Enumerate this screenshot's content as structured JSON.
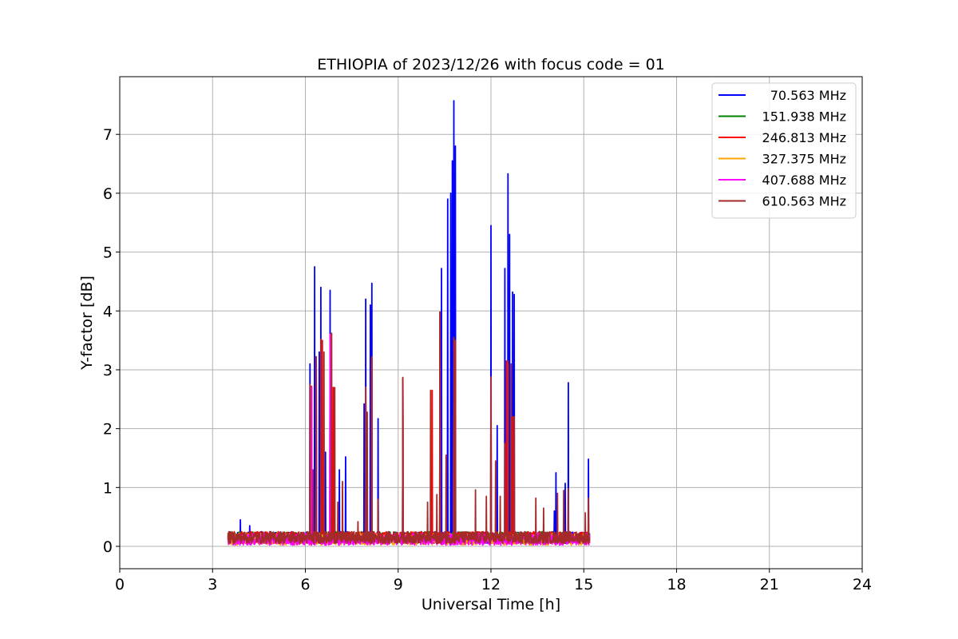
{
  "chart_data": {
    "type": "line",
    "title": "ETHIOPIA of 2023/12/26 with focus code = 01",
    "xlabel": "Universal Time [h]",
    "ylabel": "Y-factor [dB]",
    "xlim": [
      0,
      24
    ],
    "ylim": [
      -0.38,
      7.98
    ],
    "xticks": [
      0,
      3,
      6,
      9,
      12,
      15,
      18,
      21,
      24
    ],
    "yticks": [
      0,
      1,
      2,
      3,
      4,
      5,
      6,
      7
    ],
    "grid": true,
    "legend_position": "top-right",
    "baseline": {
      "x_range": [
        3.5,
        15.2
      ],
      "low": 0.05,
      "high": 0.25
    },
    "series": [
      {
        "name": "70.563 MHz",
        "color": "#0000ff",
        "spikes": [
          [
            3.9,
            0.45
          ],
          [
            4.2,
            0.35
          ],
          [
            6.15,
            3.1
          ],
          [
            6.3,
            4.75
          ],
          [
            6.45,
            3.3
          ],
          [
            6.5,
            4.4
          ],
          [
            6.65,
            1.6
          ],
          [
            6.8,
            4.35
          ],
          [
            6.9,
            2.7
          ],
          [
            7.1,
            1.3
          ],
          [
            7.3,
            1.52
          ],
          [
            7.9,
            2.42
          ],
          [
            7.95,
            4.2
          ],
          [
            8.1,
            4.1
          ],
          [
            8.15,
            4.47
          ],
          [
            8.35,
            2.17
          ],
          [
            9.15,
            2.85
          ],
          [
            10.4,
            4.72
          ],
          [
            10.6,
            5.9
          ],
          [
            10.7,
            6.0
          ],
          [
            10.75,
            6.55
          ],
          [
            10.8,
            7.57
          ],
          [
            10.85,
            6.8
          ],
          [
            12.0,
            5.45
          ],
          [
            12.2,
            2.05
          ],
          [
            12.45,
            4.72
          ],
          [
            12.55,
            6.33
          ],
          [
            12.6,
            5.3
          ],
          [
            12.7,
            4.32
          ],
          [
            12.75,
            4.28
          ],
          [
            14.05,
            0.6
          ],
          [
            14.1,
            1.25
          ],
          [
            14.4,
            1.07
          ],
          [
            14.5,
            2.78
          ],
          [
            15.15,
            1.48
          ]
        ]
      },
      {
        "name": "151.938 MHz",
        "color": "#008000",
        "spikes": [
          [
            6.2,
            2.7
          ],
          [
            6.35,
            3.2
          ],
          [
            6.8,
            3.6
          ],
          [
            7.95,
            2.7
          ],
          [
            8.15,
            3.2
          ],
          [
            9.15,
            2.85
          ],
          [
            10.35,
            3.95
          ],
          [
            10.8,
            3.5
          ],
          [
            12.0,
            2.85
          ],
          [
            12.55,
            3.1
          ],
          [
            12.7,
            2.2
          ]
        ]
      },
      {
        "name": "246.813 MHz",
        "color": "#ff0000",
        "spikes": [
          [
            6.2,
            2.72
          ],
          [
            6.35,
            3.22
          ],
          [
            6.55,
            3.5
          ],
          [
            6.8,
            3.6
          ],
          [
            6.9,
            2.7
          ],
          [
            7.95,
            2.7
          ],
          [
            8.15,
            3.2
          ],
          [
            9.15,
            2.86
          ],
          [
            10.1,
            2.65
          ],
          [
            10.35,
            3.98
          ],
          [
            10.8,
            3.52
          ],
          [
            12.0,
            2.86
          ],
          [
            12.5,
            3.15
          ],
          [
            12.7,
            2.2
          ]
        ]
      },
      {
        "name": "327.375 MHz",
        "color": "#ffa500",
        "spikes": [
          [
            6.2,
            2.7
          ],
          [
            6.35,
            3.2
          ],
          [
            6.8,
            3.6
          ],
          [
            7.95,
            2.7
          ],
          [
            8.15,
            3.2
          ],
          [
            9.15,
            2.85
          ],
          [
            10.35,
            3.95
          ],
          [
            10.8,
            3.5
          ],
          [
            12.0,
            2.85
          ],
          [
            12.55,
            3.1
          ]
        ]
      },
      {
        "name": "407.688 MHz",
        "color": "#ff00ff",
        "spikes": [
          [
            6.2,
            2.7
          ],
          [
            6.35,
            3.2
          ],
          [
            6.8,
            3.6
          ],
          [
            7.95,
            2.7
          ],
          [
            8.15,
            3.2
          ],
          [
            9.15,
            2.85
          ],
          [
            10.35,
            3.95
          ],
          [
            10.8,
            3.5
          ],
          [
            12.0,
            2.85
          ],
          [
            12.55,
            3.1
          ]
        ]
      },
      {
        "name": "610.563 MHz",
        "color": "#a52a2a",
        "spikes": [
          [
            6.15,
            2.75
          ],
          [
            6.25,
            1.3
          ],
          [
            6.35,
            3.22
          ],
          [
            6.5,
            3.52
          ],
          [
            6.6,
            3.3
          ],
          [
            6.85,
            3.62
          ],
          [
            6.95,
            2.7
          ],
          [
            7.05,
            0.75
          ],
          [
            7.2,
            1.1
          ],
          [
            7.7,
            0.42
          ],
          [
            7.95,
            2.7
          ],
          [
            8.0,
            2.28
          ],
          [
            8.15,
            3.22
          ],
          [
            8.35,
            0.8
          ],
          [
            9.15,
            2.87
          ],
          [
            9.95,
            0.75
          ],
          [
            10.05,
            2.65
          ],
          [
            10.25,
            0.88
          ],
          [
            10.35,
            3.98
          ],
          [
            10.55,
            1.55
          ],
          [
            10.8,
            3.55
          ],
          [
            10.85,
            3.5
          ],
          [
            11.5,
            0.96
          ],
          [
            11.85,
            0.85
          ],
          [
            12.0,
            2.88
          ],
          [
            12.15,
            1.45
          ],
          [
            12.3,
            0.85
          ],
          [
            12.45,
            1.75
          ],
          [
            12.55,
            3.15
          ],
          [
            12.65,
            3.1
          ],
          [
            12.75,
            2.2
          ],
          [
            13.45,
            0.82
          ],
          [
            13.7,
            0.65
          ],
          [
            14.15,
            0.9
          ],
          [
            14.35,
            0.95
          ],
          [
            14.5,
            0.98
          ],
          [
            15.05,
            0.57
          ],
          [
            15.15,
            0.82
          ]
        ]
      }
    ]
  }
}
